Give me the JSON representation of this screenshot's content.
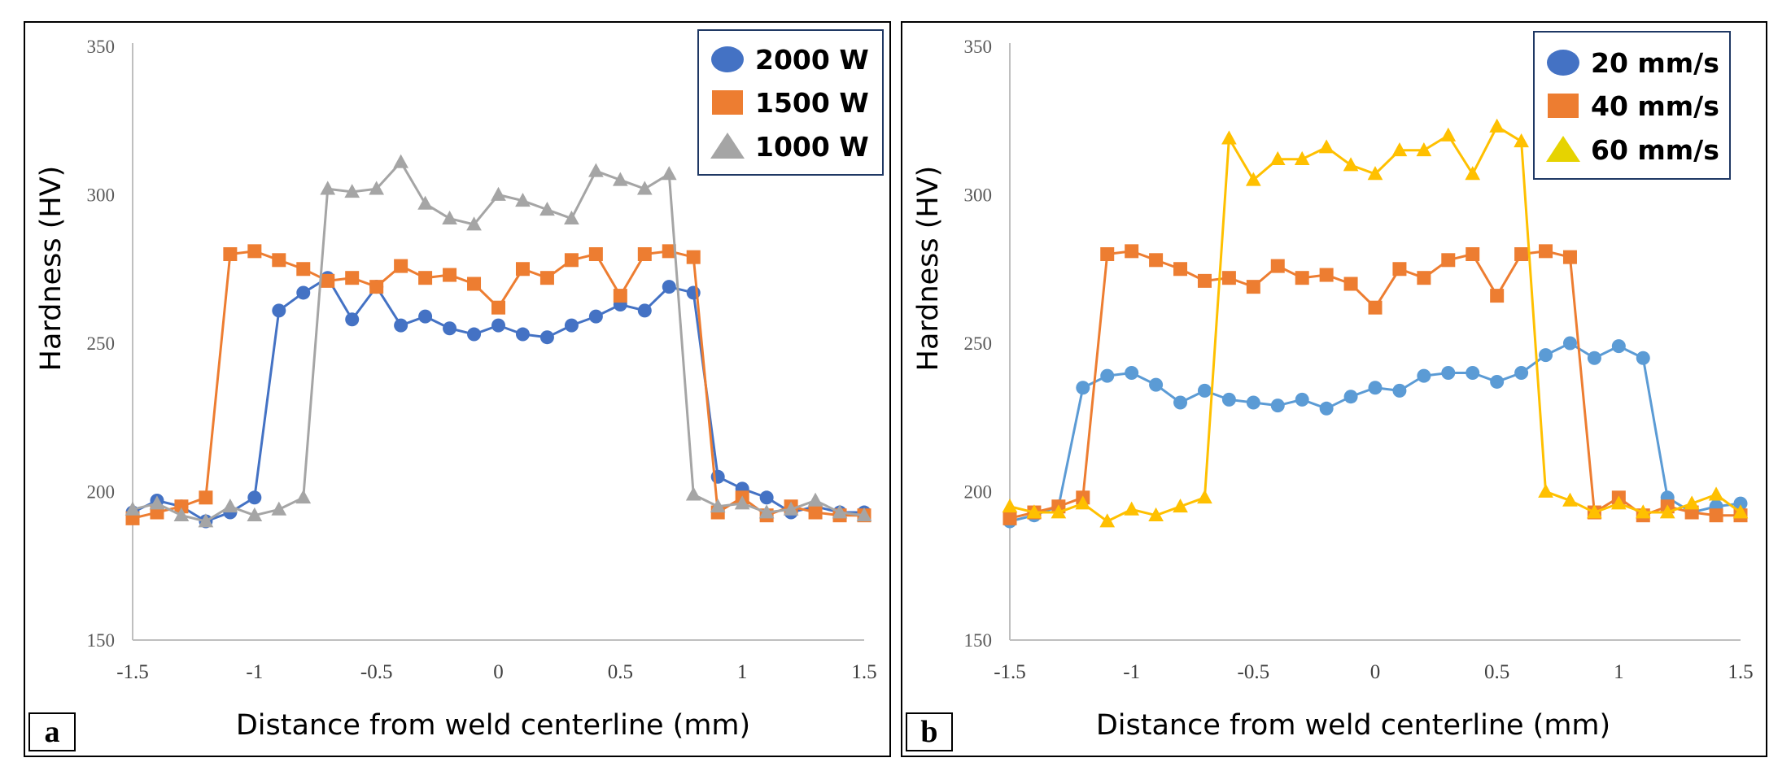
{
  "chart_data": [
    {
      "type": "line",
      "panel_label": "a",
      "xlabel": "Distance from weld centerline (mm)",
      "ylabel": "Hardness (HV)",
      "xlim": [
        -1.5,
        1.5
      ],
      "ylim": [
        150,
        350
      ],
      "x_ticks": [
        -1.5,
        -1,
        -0.5,
        0,
        0.5,
        1,
        1.5
      ],
      "x_tick_labels": [
        "-1.5",
        "-1",
        "-0.5",
        "0",
        "0.5",
        "1",
        "1.5"
      ],
      "y_ticks": [
        150,
        200,
        250,
        300,
        350
      ],
      "y_tick_labels": [
        "150",
        "200",
        "250",
        "300",
        "350"
      ],
      "legend_position": "top-right",
      "x": [
        -1.5,
        -1.4,
        -1.3,
        -1.2,
        -1.1,
        -1.0,
        -0.9,
        -0.8,
        -0.7,
        -0.6,
        -0.5,
        -0.4,
        -0.3,
        -0.2,
        -0.1,
        0.0,
        0.1,
        0.2,
        0.3,
        0.4,
        0.5,
        0.6,
        0.7,
        0.8,
        0.9,
        1.0,
        1.1,
        1.2,
        1.3,
        1.4,
        1.5
      ],
      "series": [
        {
          "name": "2000 W",
          "marker": "circle",
          "color": "#4472C4",
          "values": [
            193,
            197,
            195,
            190,
            193,
            198,
            261,
            267,
            272,
            258,
            269,
            256,
            259,
            255,
            253,
            256,
            253,
            252,
            256,
            259,
            263,
            261,
            269,
            267,
            205,
            201,
            198,
            193,
            195,
            193,
            193
          ]
        },
        {
          "name": "1500 W",
          "marker": "square",
          "color": "#ED7D31",
          "values": [
            191,
            193,
            195,
            198,
            280,
            281,
            278,
            275,
            271,
            272,
            269,
            276,
            272,
            273,
            270,
            262,
            275,
            272,
            278,
            280,
            266,
            280,
            281,
            279,
            193,
            198,
            192,
            195,
            193,
            192,
            192
          ]
        },
        {
          "name": "1000 W",
          "marker": "triangle",
          "color": "#A5A5A5",
          "values": [
            194,
            196,
            192,
            190,
            195,
            192,
            194,
            198,
            302,
            301,
            302,
            311,
            297,
            292,
            290,
            300,
            298,
            295,
            292,
            308,
            305,
            302,
            307,
            199,
            195,
            196,
            193,
            194,
            197,
            193,
            192
          ]
        }
      ]
    },
    {
      "type": "line",
      "panel_label": "b",
      "xlabel": "Distance from weld centerline (mm)",
      "ylabel": "Hardness (HV)",
      "xlim": [
        -1.5,
        1.5
      ],
      "ylim": [
        150,
        350
      ],
      "x_ticks": [
        -1.5,
        -1,
        -0.5,
        0,
        0.5,
        1,
        1.5
      ],
      "x_tick_labels": [
        "-1.5",
        "-1",
        "-0.5",
        "0",
        "0.5",
        "1",
        "1.5"
      ],
      "y_ticks": [
        150,
        200,
        250,
        300,
        350
      ],
      "y_tick_labels": [
        "150",
        "200",
        "250",
        "300",
        "350"
      ],
      "legend_position": "top-right",
      "x": [
        -1.5,
        -1.4,
        -1.3,
        -1.2,
        -1.1,
        -1.0,
        -0.9,
        -0.8,
        -0.7,
        -0.6,
        -0.5,
        -0.4,
        -0.3,
        -0.2,
        -0.1,
        0.0,
        0.1,
        0.2,
        0.3,
        0.4,
        0.5,
        0.6,
        0.7,
        0.8,
        0.9,
        1.0,
        1.1,
        1.2,
        1.3,
        1.4,
        1.5
      ],
      "series": [
        {
          "name": "20 mm/s",
          "marker": "circle",
          "color": "#5B9BD5",
          "legend_color": "#4472C4",
          "values": [
            190,
            192,
            195,
            235,
            239,
            240,
            236,
            230,
            234,
            231,
            230,
            229,
            231,
            228,
            232,
            235,
            234,
            239,
            240,
            240,
            237,
            240,
            246,
            250,
            245,
            249,
            245,
            198,
            193,
            195,
            196
          ]
        },
        {
          "name": "40 mm/s",
          "marker": "square",
          "color": "#ED7D31",
          "values": [
            191,
            193,
            195,
            198,
            280,
            281,
            278,
            275,
            271,
            272,
            269,
            276,
            272,
            273,
            270,
            262,
            275,
            272,
            278,
            280,
            266,
            280,
            281,
            279,
            193,
            198,
            192,
            195,
            193,
            192,
            192
          ]
        },
        {
          "name": "60 mm/s",
          "marker": "triangle",
          "color": "#FFC000",
          "legend_color": "#E6D300",
          "values": [
            195,
            193,
            193,
            196,
            190,
            194,
            192,
            195,
            198,
            319,
            305,
            312,
            312,
            316,
            310,
            307,
            315,
            315,
            320,
            307,
            323,
            318,
            200,
            197,
            193,
            196,
            193,
            193,
            196,
            199,
            193
          ]
        }
      ]
    }
  ]
}
